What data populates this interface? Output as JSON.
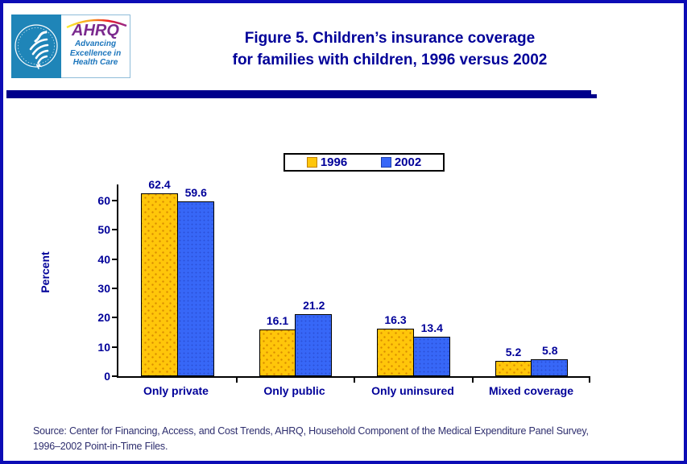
{
  "header": {
    "title_line1": "Figure 5. Children’s insurance coverage",
    "title_line2": "for families with children, 1996 versus 2002",
    "logo": {
      "agency_acronym": "AHRQ",
      "tagline_line1": "Advancing",
      "tagline_line2": "Excellence in",
      "tagline_line3": "Health Care"
    }
  },
  "chart_data": {
    "type": "bar",
    "title": "Figure 5. Children’s insurance coverage for families with children, 1996 versus 2002",
    "categories": [
      "Only private",
      "Only public",
      "Only uninsured",
      "Mixed coverage"
    ],
    "series": [
      {
        "name": "1996",
        "color": "#ffc60a",
        "values": [
          62.4,
          16.1,
          16.3,
          5.2
        ]
      },
      {
        "name": "2002",
        "color": "#3767f7",
        "values": [
          59.6,
          21.2,
          13.4,
          5.8
        ]
      }
    ],
    "xlabel": "",
    "ylabel": "Percent",
    "ylim": [
      0,
      65
    ],
    "yticks": [
      0,
      10,
      20,
      30,
      40,
      50,
      60
    ],
    "grid": false,
    "legend_position": "top-center",
    "bar_value_labels": true
  },
  "source": {
    "line1": "Source: Center for Financing, Access, and Cost Trends, AHRQ, Household Component of the Medical Expenditure Panel Survey,",
    "line2": "1996–2002 Point-in-Time Files."
  }
}
